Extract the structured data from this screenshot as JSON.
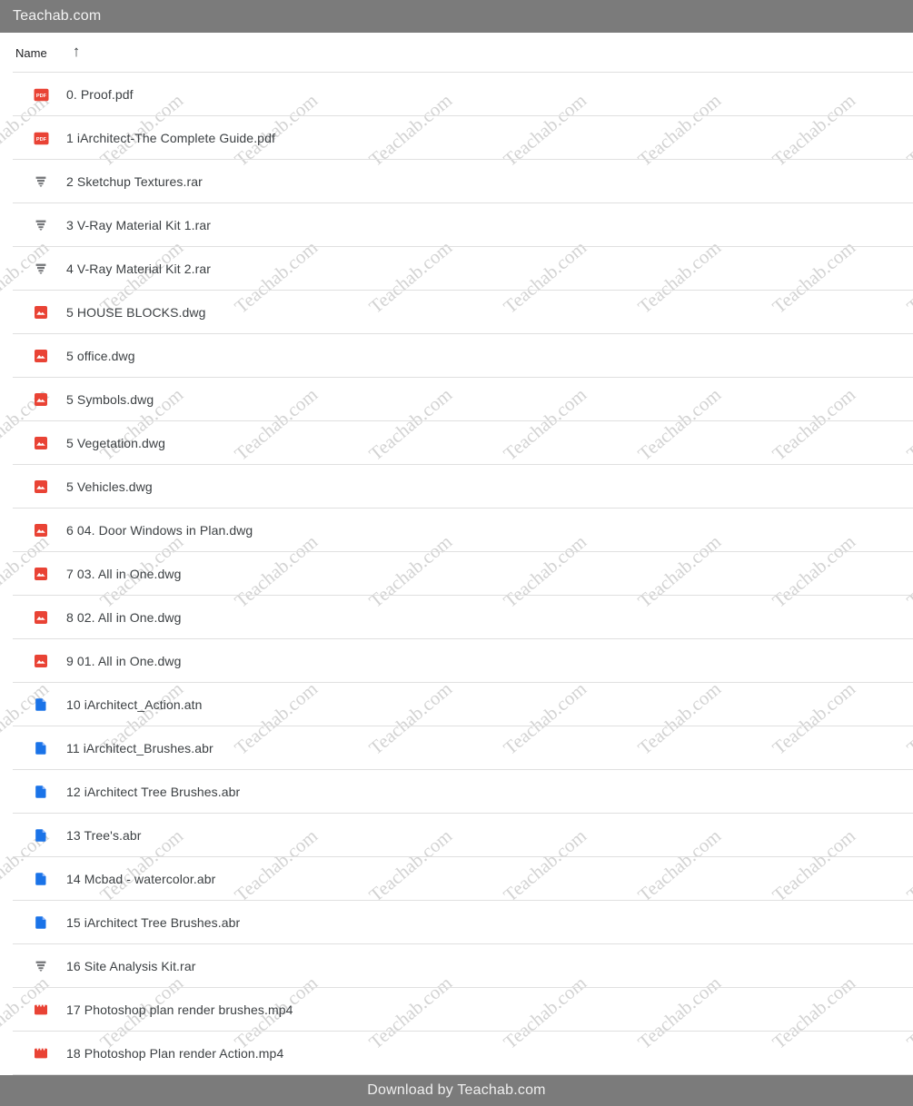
{
  "topbar": {
    "title": "Teachab.com"
  },
  "list_header": {
    "name_label": "Name",
    "sort_glyph": "↑"
  },
  "files": [
    {
      "name": "0. Proof.pdf",
      "icon": "pdf-icon"
    },
    {
      "name": "1 iArchitect-The Complete Guide.pdf",
      "icon": "pdf-icon"
    },
    {
      "name": "2 Sketchup Textures.rar",
      "icon": "archive-icon"
    },
    {
      "name": "3 V-Ray Material Kit 1.rar",
      "icon": "archive-icon"
    },
    {
      "name": "4 V-Ray Material Kit 2.rar",
      "icon": "archive-icon"
    },
    {
      "name": "5 HOUSE BLOCKS.dwg",
      "icon": "image-icon"
    },
    {
      "name": "5 office.dwg",
      "icon": "image-icon"
    },
    {
      "name": "5 Symbols.dwg",
      "icon": "image-icon"
    },
    {
      "name": "5 Vegetation.dwg",
      "icon": "image-icon"
    },
    {
      "name": "5 Vehicles.dwg",
      "icon": "image-icon"
    },
    {
      "name": "6 04. Door Windows in Plan.dwg",
      "icon": "image-icon"
    },
    {
      "name": "7 03. All in One.dwg",
      "icon": "image-icon"
    },
    {
      "name": "8 02. All in One.dwg",
      "icon": "image-icon"
    },
    {
      "name": "9 01. All in One.dwg",
      "icon": "image-icon"
    },
    {
      "name": "10 iArchitect_Action.atn",
      "icon": "file-icon"
    },
    {
      "name": "11 iArchitect_Brushes.abr",
      "icon": "file-icon"
    },
    {
      "name": "12 iArchitect Tree Brushes.abr",
      "icon": "file-icon"
    },
    {
      "name": "13 Tree's.abr",
      "icon": "file-icon"
    },
    {
      "name": "14 Mcbad - watercolor.abr",
      "icon": "file-icon"
    },
    {
      "name": "15 iArchitect Tree Brushes.abr",
      "icon": "file-icon"
    },
    {
      "name": "16 Site Analysis Kit.rar",
      "icon": "archive-icon"
    },
    {
      "name": "17 Photoshop plan render brushes.mp4",
      "icon": "video-icon"
    },
    {
      "name": "18 Photoshop Plan render Action.mp4",
      "icon": "video-icon"
    }
  ],
  "icons": {
    "pdf_label": "PDF"
  },
  "watermark": {
    "text": "Teachab.com"
  },
  "footer": {
    "text": "Download by Teachab.com"
  },
  "colors": {
    "bar_gray": "#7b7b7b",
    "file_red": "#e94335",
    "file_blue": "#1a73e8",
    "file_blue_fold": "#8ab4f8",
    "archive_gray": "#747679",
    "divider": "#e0e0e0",
    "filename_text": "#3c4043"
  }
}
